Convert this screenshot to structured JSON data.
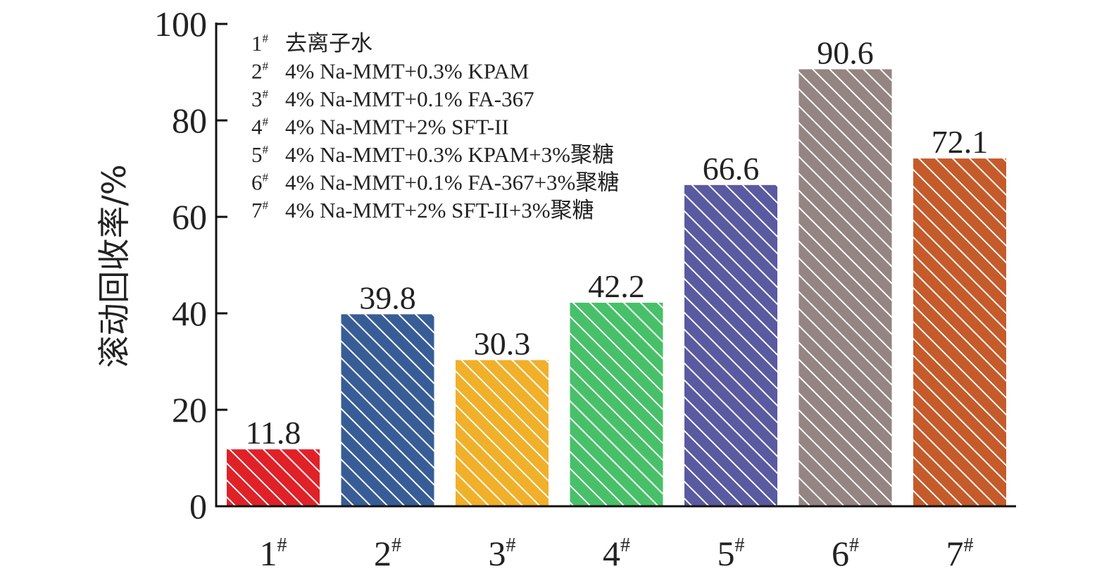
{
  "chart_data": {
    "type": "bar",
    "title": "",
    "xlabel": "",
    "ylabel": "滚动回收率/%",
    "ylim": [
      0,
      100
    ],
    "yticks": [
      0,
      20,
      40,
      60,
      80,
      100
    ],
    "grid": false,
    "legend_position": "top-left",
    "categories": [
      {
        "base": "1",
        "sup": "#"
      },
      {
        "base": "2",
        "sup": "#"
      },
      {
        "base": "3",
        "sup": "#"
      },
      {
        "base": "4",
        "sup": "#"
      },
      {
        "base": "5",
        "sup": "#"
      },
      {
        "base": "6",
        "sup": "#"
      },
      {
        "base": "7",
        "sup": "#"
      }
    ],
    "values": [
      11.8,
      39.8,
      30.3,
      42.2,
      66.6,
      90.6,
      72.1
    ],
    "value_labels": [
      "11.8",
      "39.8",
      "30.3",
      "42.2",
      "66.6",
      "90.6",
      "72.1"
    ],
    "colors": [
      "#e02128",
      "#385d96",
      "#f0b02a",
      "#48c06a",
      "#5a5aa0",
      "#948582",
      "#c55b2a"
    ],
    "pattern": "diagonal-hatch-white",
    "legend_entries": [
      {
        "base": "1",
        "sup": "#",
        "text": "去离子水"
      },
      {
        "base": "2",
        "sup": "#",
        "text": "4% Na-MMT+0.3% KPAM"
      },
      {
        "base": "3",
        "sup": "#",
        "text": "4% Na-MMT+0.1% FA-367"
      },
      {
        "base": "4",
        "sup": "#",
        "text": "4% Na-MMT+2% SFT-II"
      },
      {
        "base": "5",
        "sup": "#",
        "text": "4% Na-MMT+0.3% KPAM+3%聚糖"
      },
      {
        "base": "6",
        "sup": "#",
        "text": "4% Na-MMT+0.1% FA-367+3%聚糖"
      },
      {
        "base": "7",
        "sup": "#",
        "text": "4% Na-MMT+2% SFT-II+3%聚糖"
      }
    ]
  }
}
